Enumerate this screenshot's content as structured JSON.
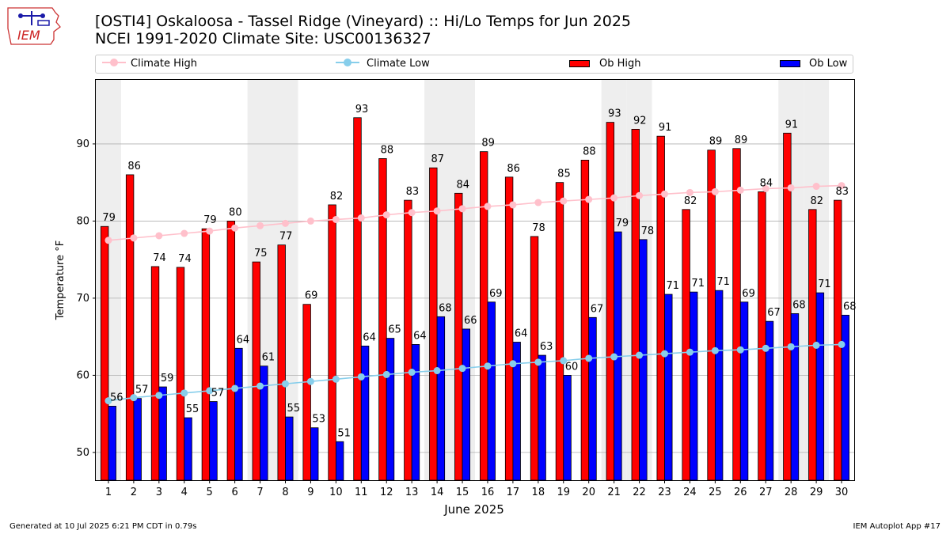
{
  "header": {
    "title_line1": "[OSTI4] Oskaloosa - Tassel Ridge (Vineyard) :: Hi/Lo Temps for Jun 2025",
    "title_line2": "NCEI 1991-2020 Climate Site: USC00136327",
    "logo_text": "IEM"
  },
  "legend": {
    "climate_high": "Climate High",
    "climate_low": "Climate Low",
    "ob_high": "Ob High",
    "ob_low": "Ob Low"
  },
  "footer": {
    "generated": "Generated at 10 Jul 2025 6:21 PM CDT in 0.79s",
    "app": "IEM Autoplot App #17"
  },
  "colors": {
    "ob_high": "#ff0000",
    "ob_low": "#0000ff",
    "climate_high": "#ffc0cb",
    "climate_low": "#87ceeb",
    "weekend_shade": "#eeeeee",
    "grid": "#b0b0b0"
  },
  "chart_data": {
    "type": "bar",
    "xlabel": "June 2025",
    "ylabel": "Temperature °F",
    "ylim": [
      46.4,
      98.3
    ],
    "yticks": [
      50,
      60,
      70,
      80,
      90
    ],
    "grid": "horizontal",
    "legend_position": "top",
    "categories": [
      "1",
      "2",
      "3",
      "4",
      "5",
      "6",
      "7",
      "8",
      "9",
      "10",
      "11",
      "12",
      "13",
      "14",
      "15",
      "16",
      "17",
      "18",
      "19",
      "20",
      "21",
      "22",
      "23",
      "24",
      "25",
      "26",
      "27",
      "28",
      "29",
      "30"
    ],
    "shaded_days": [
      1,
      7,
      8,
      14,
      15,
      21,
      22,
      28,
      29
    ],
    "series": [
      {
        "name": "Ob High",
        "kind": "bar",
        "values": [
          79.3,
          86.0,
          74.1,
          74.0,
          79.0,
          80.0,
          74.7,
          76.9,
          69.2,
          82.1,
          93.4,
          88.1,
          82.7,
          86.9,
          83.6,
          89.0,
          85.7,
          78.0,
          85.0,
          87.9,
          92.8,
          91.9,
          91.0,
          81.5,
          89.2,
          89.4,
          83.8,
          91.4,
          81.5,
          82.7
        ],
        "labels": [
          "79",
          "86",
          "74",
          "74",
          "79",
          "80",
          "75",
          "77",
          "69",
          "82",
          "93",
          "88",
          "83",
          "87",
          "84",
          "89",
          "86",
          "78",
          "85",
          "88",
          "93",
          "92",
          "91",
          "82",
          "89",
          "89",
          "84",
          "91",
          "82",
          "83"
        ]
      },
      {
        "name": "Ob Low",
        "kind": "bar",
        "values": [
          56.0,
          57.0,
          58.5,
          54.5,
          56.6,
          63.5,
          61.2,
          54.6,
          53.2,
          51.4,
          63.8,
          64.8,
          64.0,
          67.6,
          66.0,
          69.5,
          64.3,
          62.6,
          60.0,
          67.5,
          78.6,
          77.6,
          70.5,
          70.8,
          71.0,
          69.5,
          67.0,
          68.0,
          70.7,
          67.8
        ],
        "labels": [
          "56",
          "57",
          "59",
          "55",
          "57",
          "64",
          "61",
          "55",
          "53",
          "51",
          "64",
          "65",
          "64",
          "68",
          "66",
          "69",
          "64",
          "63",
          "60",
          "67",
          "79",
          "78",
          "71",
          "71",
          "71",
          "69",
          "67",
          "68",
          "71",
          "68"
        ]
      },
      {
        "name": "Climate High",
        "kind": "line",
        "values": [
          77.5,
          77.8,
          78.1,
          78.4,
          78.7,
          79.1,
          79.4,
          79.7,
          80.0,
          80.2,
          80.4,
          80.8,
          81.1,
          81.3,
          81.6,
          81.9,
          82.1,
          82.4,
          82.6,
          82.8,
          83.0,
          83.3,
          83.5,
          83.7,
          83.8,
          84.0,
          84.2,
          84.3,
          84.5,
          84.6
        ]
      },
      {
        "name": "Climate Low",
        "kind": "line",
        "values": [
          56.7,
          57.1,
          57.4,
          57.7,
          58.0,
          58.3,
          58.6,
          58.9,
          59.2,
          59.5,
          59.8,
          60.1,
          60.4,
          60.6,
          60.9,
          61.2,
          61.5,
          61.7,
          61.9,
          62.2,
          62.4,
          62.6,
          62.8,
          63.0,
          63.2,
          63.3,
          63.5,
          63.7,
          63.9,
          64.0
        ]
      }
    ]
  }
}
